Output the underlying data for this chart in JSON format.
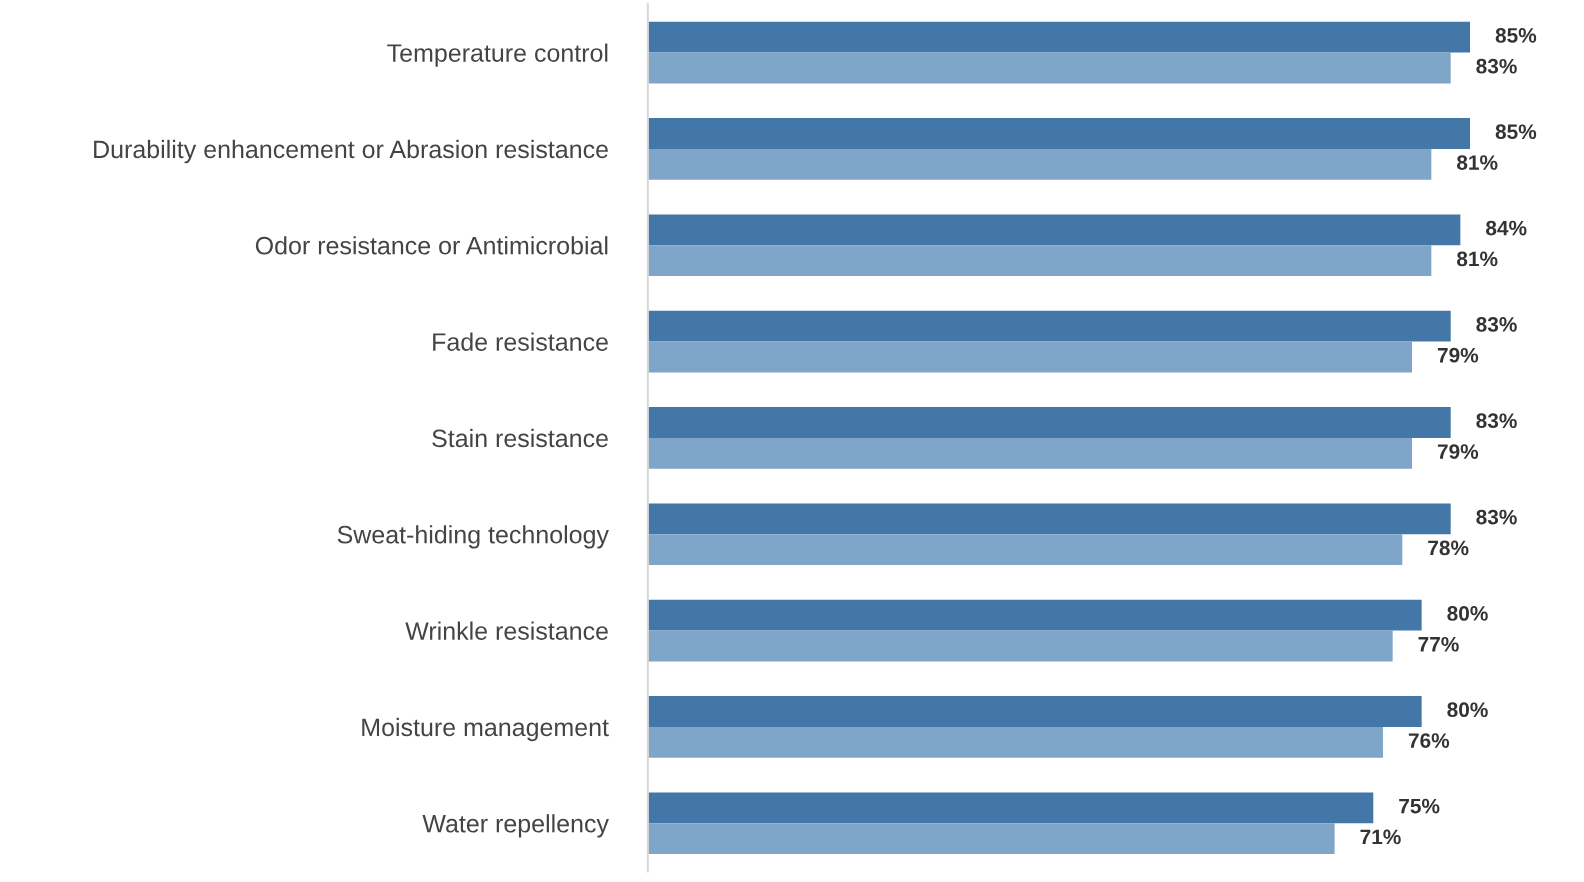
{
  "chart_data": {
    "type": "bar",
    "orientation": "horizontal",
    "categories": [
      "Temperature control",
      "Durability enhancement or Abrasion resistance",
      "Odor resistance or Antimicrobial",
      "Fade resistance",
      "Stain resistance",
      "Sweat-hiding technology",
      "Wrinkle resistance",
      "Moisture management",
      "Water repellency"
    ],
    "series": [
      {
        "color": "#4277a7",
        "values": [
          85,
          85,
          84,
          83,
          83,
          83,
          80,
          80,
          75
        ],
        "value_labels": [
          "85%",
          "85%",
          "84%",
          "83%",
          "83%",
          "83%",
          "80%",
          "80%",
          "75%"
        ]
      },
      {
        "color": "#7fa5c8",
        "values": [
          83,
          81,
          81,
          79,
          79,
          78,
          77,
          76,
          71
        ],
        "value_labels": [
          "83%",
          "81%",
          "81%",
          "79%",
          "79%",
          "78%",
          "77%",
          "76%",
          "71%"
        ]
      }
    ],
    "tick_labels": "y",
    "grid": false,
    "legend": false
  }
}
